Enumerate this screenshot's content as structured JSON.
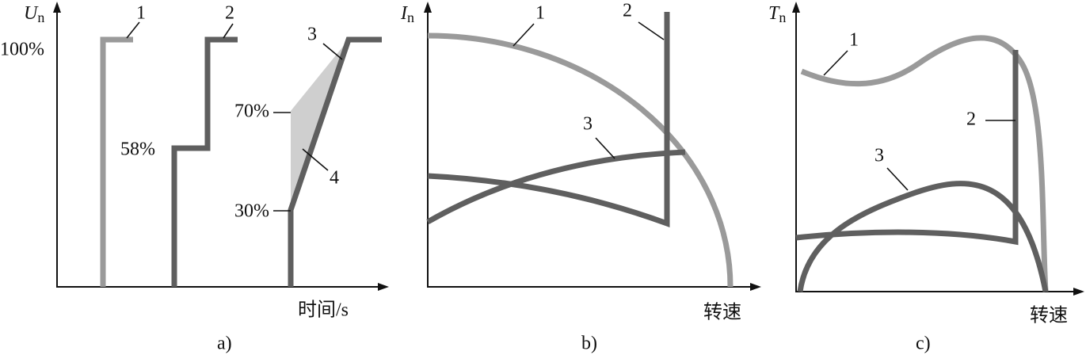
{
  "panels": [
    {
      "caption": "a)",
      "y_axis": {
        "symbol": "U",
        "subscript": "n"
      },
      "x_axis": "时间/s",
      "level_labels": [
        "100%",
        "70%",
        "58%",
        "30%"
      ],
      "curve_labels": [
        "1",
        "2",
        "3",
        "4"
      ]
    },
    {
      "caption": "b)",
      "y_axis": {
        "symbol": "I",
        "subscript": "n"
      },
      "x_axis": "转速",
      "curve_labels": [
        "1",
        "2",
        "3"
      ]
    },
    {
      "caption": "c)",
      "y_axis": {
        "symbol": "T",
        "subscript": "n"
      },
      "x_axis": "转速",
      "curve_labels": [
        "1",
        "2",
        "3"
      ]
    }
  ]
}
